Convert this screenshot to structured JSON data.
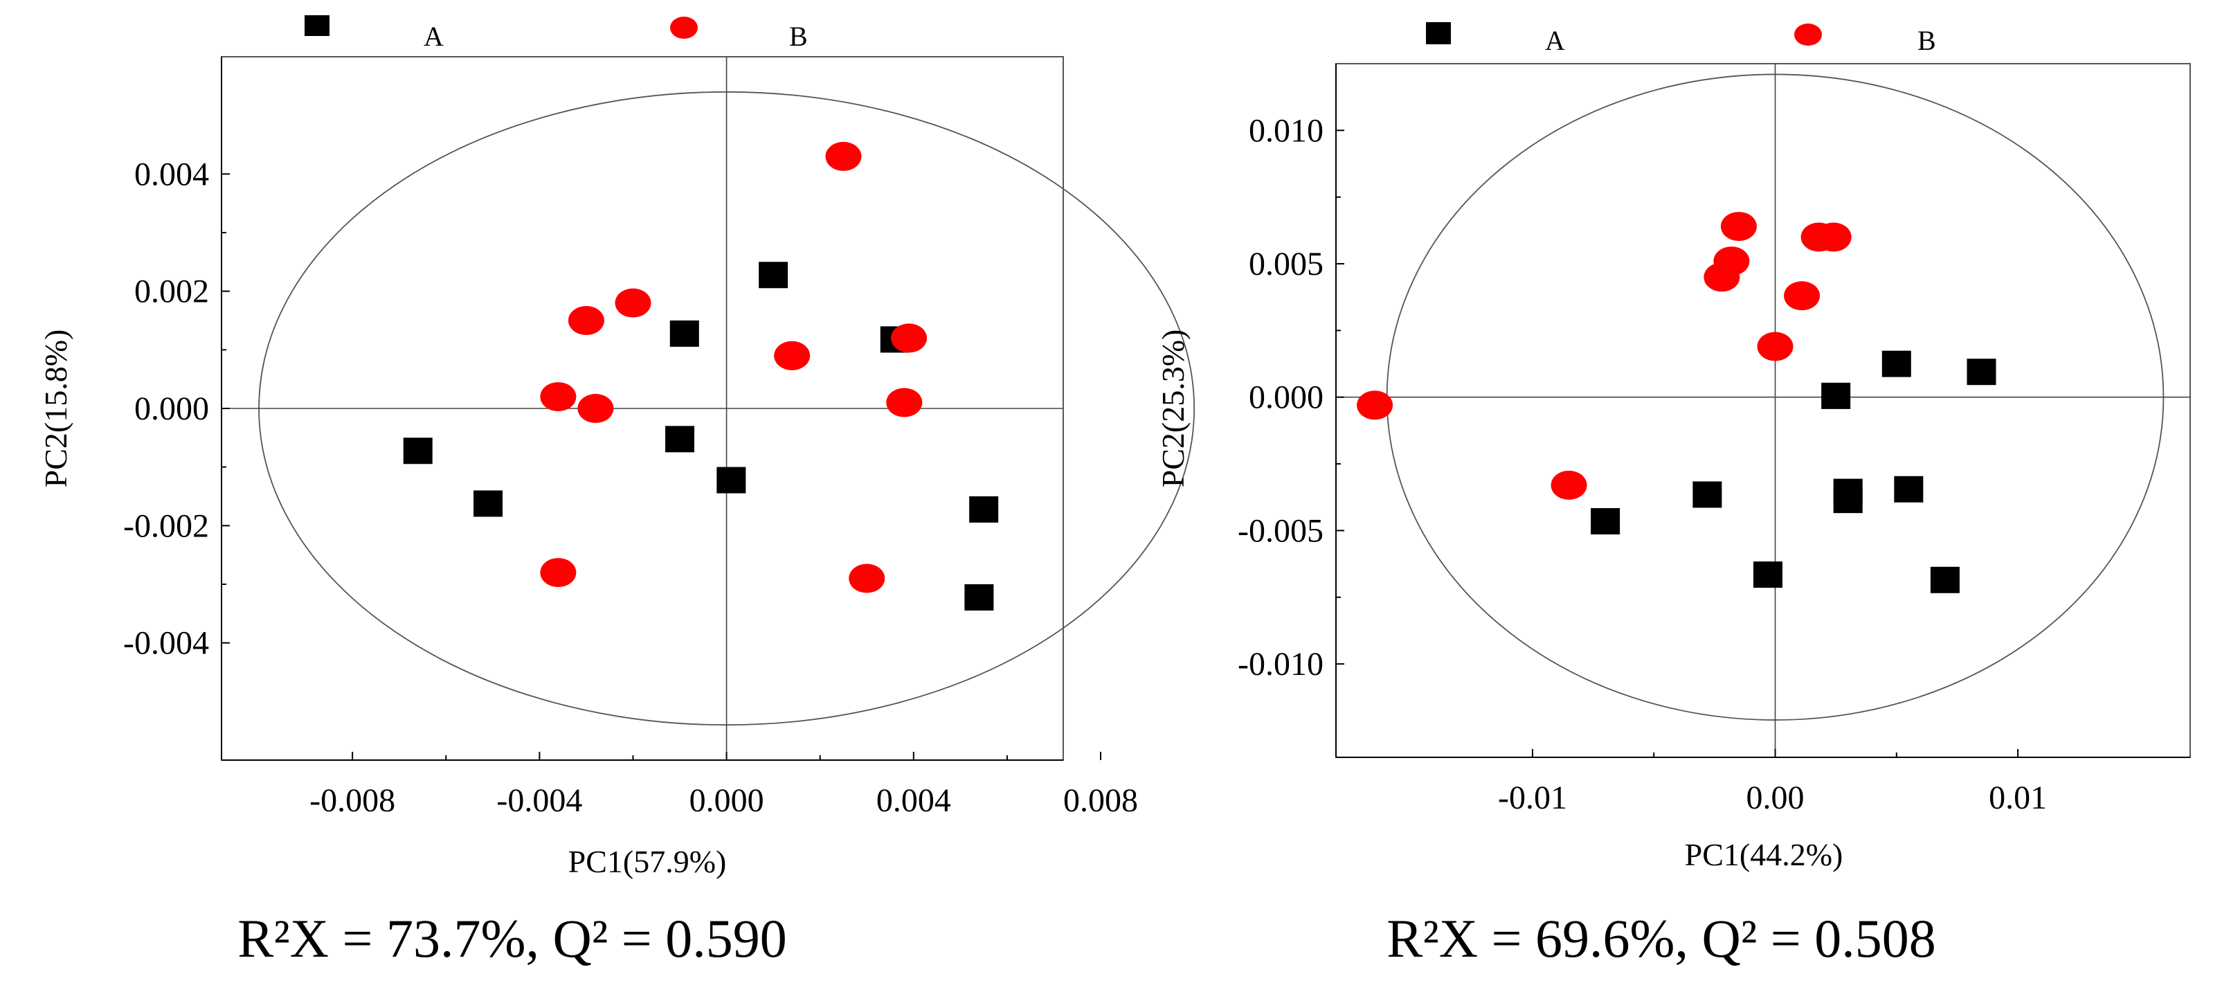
{
  "colors": {
    "A": "#000000",
    "B": "#ff0000"
  },
  "chart_data": [
    {
      "type": "scatter",
      "legend": [
        {
          "label": "A",
          "shape": "square"
        },
        {
          "label": "B",
          "shape": "circle"
        }
      ],
      "xlabel": "PC1(57.9%)",
      "ylabel": "PC2(15.8%)",
      "xlim": [
        -0.0108,
        0.0072
      ],
      "ylim": [
        -0.006,
        0.006
      ],
      "xticks": [
        -0.008,
        -0.004,
        0.0,
        0.004,
        0.008
      ],
      "xtick_labels": [
        "-0.008",
        "-0.004",
        "0.000",
        "0.004",
        "0.008"
      ],
      "yticks": [
        0.004,
        0.002,
        0.0,
        -0.002,
        -0.004
      ],
      "ytick_labels": [
        "0.004",
        "0.002",
        "0.000",
        "-0.002",
        "-0.004"
      ],
      "ellipse": {
        "rx": 0.01,
        "ry": 0.0054
      },
      "metrics": "R²X = 73.7%, Q² = 0.590",
      "series": [
        {
          "name": "A",
          "points": [
            [
              -0.0066,
              -0.0007
            ],
            [
              -0.0051,
              -0.0016
            ],
            [
              -0.0009,
              0.0013
            ],
            [
              -0.001,
              -0.0005
            ],
            [
              0.0001,
              -0.0012
            ],
            [
              0.001,
              0.0023
            ],
            [
              0.0036,
              0.0012
            ],
            [
              0.0055,
              -0.0017
            ],
            [
              0.0054,
              -0.0032
            ]
          ]
        },
        {
          "name": "B",
          "points": [
            [
              -0.003,
              0.0015
            ],
            [
              -0.002,
              0.0018
            ],
            [
              -0.0036,
              0.0002
            ],
            [
              -0.0028,
              0.0
            ],
            [
              -0.0036,
              -0.0028
            ],
            [
              0.0014,
              0.0009
            ],
            [
              0.0025,
              0.0043
            ],
            [
              0.0039,
              0.0012
            ],
            [
              0.0038,
              0.0001
            ],
            [
              0.003,
              -0.0029
            ]
          ]
        }
      ]
    },
    {
      "type": "scatter",
      "legend": [
        {
          "label": "A",
          "shape": "square"
        },
        {
          "label": "B",
          "shape": "circle"
        }
      ],
      "xlabel": "PC1(44.2%)",
      "ylabel": "PC2(25.3%)",
      "xlim": [
        -0.0181,
        0.0171
      ],
      "ylim": [
        -0.0135,
        0.0125
      ],
      "xticks": [
        -0.01,
        0.0,
        0.01
      ],
      "xtick_labels": [
        "-0.01",
        "0.00",
        "0.01"
      ],
      "yticks": [
        0.01,
        0.005,
        0.0,
        -0.005,
        -0.01
      ],
      "ytick_labels": [
        "0.010",
        "0.005",
        "0.000",
        "-0.005",
        "-0.010"
      ],
      "ellipse": {
        "rx": 0.016,
        "ry": 0.0121
      },
      "metrics": "R²X = 69.6%, Q² = 0.508",
      "series": [
        {
          "name": "A",
          "points": [
            [
              -0.007,
              -0.0046
            ],
            [
              -0.0028,
              -0.0036
            ],
            [
              -0.0003,
              -0.0066
            ],
            [
              0.0025,
              0.0001
            ],
            [
              0.003,
              -0.0035
            ],
            [
              0.003,
              -0.0038
            ],
            [
              0.005,
              0.0013
            ],
            [
              0.0055,
              -0.0034
            ],
            [
              0.0085,
              0.001
            ],
            [
              0.007,
              -0.0068
            ]
          ]
        },
        {
          "name": "B",
          "points": [
            [
              -0.0165,
              -0.0003
            ],
            [
              -0.0085,
              -0.0033
            ],
            [
              -0.0015,
              0.0064
            ],
            [
              -0.0018,
              0.0051
            ],
            [
              -0.0022,
              0.0045
            ],
            [
              0.0,
              0.0019
            ],
            [
              0.0011,
              0.0038
            ],
            [
              0.0018,
              0.006
            ],
            [
              0.0024,
              0.006
            ]
          ]
        }
      ]
    }
  ]
}
